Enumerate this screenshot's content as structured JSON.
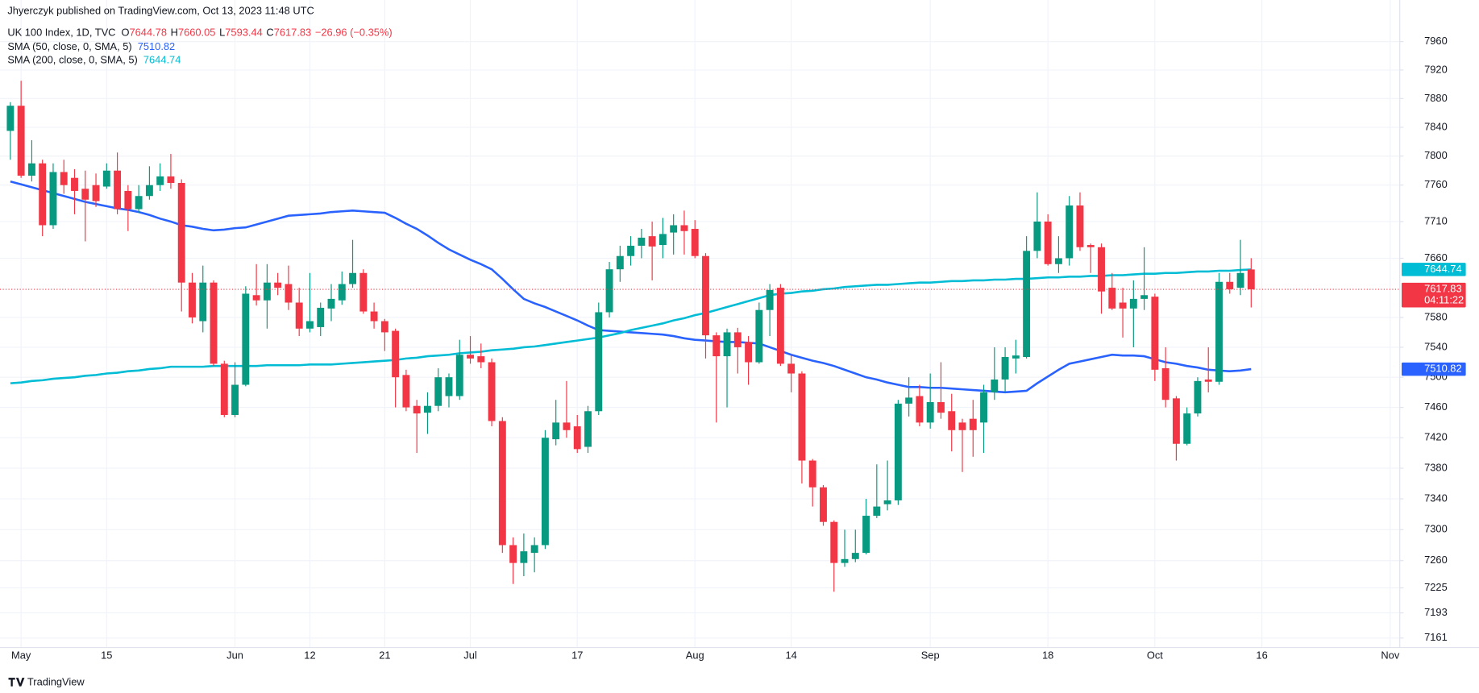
{
  "header": "Jhyerczyk published on TradingView.com, Oct 13, 2023 11:48 UTC",
  "footer": "TradingView",
  "chart_data": {
    "type": "candlestick",
    "title": "UK 100 Index, 1D, TVC",
    "legend": [
      {
        "label": "O",
        "value": 7644.78
      },
      {
        "label": "H",
        "value": 7660.05
      },
      {
        "label": "L",
        "value": 7593.44
      },
      {
        "label": "C",
        "value": 7617.83
      }
    ],
    "change": "−26.96 (−0.35%)",
    "countdown": "04:11:22",
    "up_color": "#089981",
    "down_color": "#f23645",
    "log_scale": true,
    "grid": true,
    "ylim": [
      7149,
      8019
    ],
    "yticks": [
      7161,
      7193,
      7225,
      7260,
      7300,
      7340,
      7380,
      7420,
      7460,
      7500,
      7540,
      7580,
      7660,
      7710,
      7760,
      7800,
      7840,
      7880,
      7920,
      7960
    ],
    "categories": [
      null,
      "May",
      null,
      null,
      null,
      null,
      null,
      null,
      null,
      "15",
      null,
      null,
      null,
      null,
      null,
      null,
      null,
      null,
      null,
      null,
      null,
      "Jun",
      null,
      null,
      null,
      null,
      null,
      null,
      "12",
      null,
      null,
      null,
      null,
      null,
      null,
      "21",
      null,
      null,
      null,
      null,
      null,
      null,
      null,
      "Jul",
      null,
      null,
      null,
      null,
      null,
      null,
      null,
      null,
      null,
      "17",
      null,
      null,
      null,
      null,
      null,
      null,
      null,
      null,
      null,
      null,
      "Aug",
      null,
      null,
      null,
      null,
      null,
      null,
      null,
      null,
      "14",
      null,
      null,
      null,
      null,
      null,
      null,
      null,
      null,
      null,
      null,
      null,
      null,
      "Sep",
      null,
      null,
      null,
      null,
      null,
      null,
      null,
      null,
      null,
      null,
      "18",
      null,
      null,
      null,
      null,
      null,
      null,
      null,
      null,
      null,
      "Oct",
      null,
      null,
      null,
      null,
      null,
      null,
      null,
      null,
      null,
      "16",
      null,
      null,
      null,
      null,
      null,
      null,
      null,
      null,
      null,
      null,
      null,
      "Nov"
    ],
    "open": [
      7835,
      7870,
      7773,
      7790,
      7705,
      7778,
      7770,
      7755,
      7760,
      7758,
      7780,
      7752,
      7727,
      7745,
      7760,
      7772,
      7763,
      7627,
      7575,
      7627,
      7518,
      7450,
      7490,
      7610,
      7603,
      7627,
      7625,
      7600,
      7565,
      7567,
      7592,
      7603,
      7625,
      7640,
      7588,
      7575,
      7562,
      7503,
      7462,
      7453,
      7462,
      7475,
      7475,
      7530,
      7528,
      7520,
      7442,
      7280,
      7257,
      7270,
      7280,
      7418,
      7440,
      7435,
      7408,
      7455,
      7587,
      7645,
      7663,
      7677,
      7690,
      7678,
      7695,
      7705,
      7700,
      7663,
      7556,
      7528,
      7560,
      7547,
      7520,
      7590,
      7620,
      7518,
      7505,
      7390,
      7355,
      7310,
      7257,
      7262,
      7270,
      7318,
      7333,
      7338,
      7465,
      7475,
      7440,
      7467,
      7455,
      7440,
      7445,
      7440,
      7480,
      7497,
      7525,
      7527,
      7670,
      7710,
      7652,
      7660,
      7732,
      7678,
      7675,
      7620,
      7600,
      7592,
      7605,
      7608,
      7512,
      7472,
      7412,
      7452,
      7497,
      7494,
      7628,
      7620,
      7644.78,
      null,
      null,
      null,
      null,
      null,
      null,
      null,
      null,
      null,
      null,
      null,
      null,
      null
    ],
    "high": [
      7875,
      7905,
      7822,
      7795,
      7790,
      7795,
      7782,
      7780,
      7776,
      7790,
      7805,
      7760,
      7760,
      7786,
      7790,
      7803,
      7768,
      7640,
      7650,
      7630,
      7522,
      7520,
      7622,
      7652,
      7652,
      7640,
      7650,
      7620,
      7640,
      7600,
      7625,
      7642,
      7685,
      7645,
      7600,
      7578,
      7565,
      7510,
      7470,
      7480,
      7512,
      7505,
      7550,
      7555,
      7545,
      7525,
      7447,
      7290,
      7295,
      7290,
      7430,
      7470,
      7495,
      7450,
      7462,
      7600,
      7655,
      7677,
      7690,
      7700,
      7710,
      7715,
      7720,
      7725,
      7712,
      7667,
      7560,
      7565,
      7566,
      7555,
      7600,
      7625,
      7625,
      7530,
      7508,
      7392,
      7358,
      7312,
      7300,
      7300,
      7340,
      7385,
      7390,
      7470,
      7500,
      7490,
      7505,
      7520,
      7478,
      7445,
      7470,
      7490,
      7540,
      7540,
      7550,
      7690,
      7750,
      7720,
      7690,
      7745,
      7750,
      7680,
      7680,
      7640,
      7620,
      7630,
      7675,
      7612,
      7540,
      7475,
      7460,
      7500,
      7540,
      7640,
      7640,
      7685,
      7660.05,
      null,
      null,
      null,
      null,
      null,
      null,
      null,
      null,
      null,
      null,
      null,
      null,
      null
    ],
    "low": [
      7795,
      7770,
      7765,
      7690,
      7700,
      7748,
      7720,
      7683,
      7730,
      7755,
      7720,
      7697,
      7722,
      7740,
      7752,
      7755,
      7588,
      7572,
      7560,
      7515,
      7447,
      7447,
      7488,
      7596,
      7565,
      7610,
      7590,
      7555,
      7560,
      7555,
      7575,
      7597,
      7620,
      7585,
      7565,
      7535,
      7460,
      7455,
      7400,
      7425,
      7455,
      7460,
      7470,
      7518,
      7512,
      7435,
      7270,
      7230,
      7240,
      7245,
      7275,
      7410,
      7420,
      7400,
      7400,
      7450,
      7580,
      7628,
      7650,
      7660,
      7630,
      7660,
      7665,
      7665,
      7660,
      7525,
      7440,
      7460,
      7505,
      7490,
      7518,
      7555,
      7515,
      7480,
      7360,
      7330,
      7305,
      7220,
      7252,
      7258,
      7268,
      7315,
      7325,
      7332,
      7448,
      7435,
      7432,
      7445,
      7402,
      7375,
      7395,
      7400,
      7470,
      7480,
      7505,
      7525,
      7660,
      7650,
      7640,
      7650,
      7670,
      7640,
      7585,
      7590,
      7553,
      7540,
      7590,
      7495,
      7460,
      7390,
      7410,
      7448,
      7480,
      7490,
      7612,
      7610,
      7593.44,
      null,
      null,
      null,
      null,
      null,
      null,
      null,
      null,
      null,
      null,
      null,
      null,
      null
    ],
    "close": [
      7870,
      7773,
      7790,
      7705,
      7778,
      7760,
      7752,
      7740,
      7738,
      7780,
      7727,
      7727,
      7745,
      7760,
      7772,
      7763,
      7627,
      7580,
      7627,
      7518,
      7450,
      7490,
      7612,
      7603,
      7627,
      7620,
      7600,
      7565,
      7575,
      7593,
      7605,
      7625,
      7640,
      7588,
      7575,
      7560,
      7500,
      7460,
      7452,
      7462,
      7500,
      7500,
      7530,
      7525,
      7520,
      7442,
      7280,
      7257,
      7272,
      7280,
      7420,
      7440,
      7430,
      7405,
      7455,
      7587,
      7645,
      7663,
      7677,
      7688,
      7676,
      7693,
      7705,
      7697,
      7663,
      7556,
      7528,
      7560,
      7540,
      7520,
      7590,
      7617,
      7518,
      7505,
      7390,
      7355,
      7310,
      7257,
      7262,
      7270,
      7318,
      7330,
      7338,
      7465,
      7473,
      7440,
      7467,
      7453,
      7430,
      7430,
      7430,
      7480,
      7497,
      7527,
      7529,
      7670,
      7710,
      7652,
      7660,
      7732,
      7675,
      7675,
      7615,
      7592,
      7592,
      7605,
      7610,
      7510,
      7470,
      7412,
      7452,
      7495,
      7494,
      7628,
      7618,
      7640,
      7617.83,
      null,
      null,
      null,
      null,
      null,
      null,
      null,
      null,
      null,
      null,
      null,
      null,
      null
    ],
    "series": [
      {
        "name": "SMA (50, close, 0, SMA, 5)",
        "color": "#2962ff",
        "values": [
          7765,
          7761,
          7757,
          7753,
          7749,
          7745,
          7741,
          7737,
          7734,
          7731,
          7728,
          7726,
          7723,
          7719,
          7714,
          7710,
          7705,
          7703,
          7700,
          7698,
          7699,
          7701,
          7702,
          7706,
          7710,
          7714,
          7718,
          7719,
          7720,
          7721,
          7723,
          7724,
          7725,
          7724,
          7723,
          7722,
          7715,
          7707,
          7700,
          7691,
          7681,
          7672,
          7665,
          7658,
          7652,
          7645,
          7632,
          7618,
          7605,
          7599,
          7594,
          7588,
          7582,
          7576,
          7569,
          7563,
          7562,
          7561,
          7560,
          7559,
          7558,
          7557,
          7555,
          7552,
          7550,
          7549,
          7548,
          7547,
          7547,
          7546,
          7545,
          7540,
          7535,
          7530,
          7526,
          7522,
          7519,
          7515,
          7510,
          7505,
          7500,
          7497,
          7493,
          7490,
          7487,
          7487,
          7486,
          7486,
          7485,
          7484,
          7483,
          7482,
          7481,
          7480,
          7481,
          7482,
          7492,
          7501,
          7510,
          7518,
          7521,
          7524,
          7527,
          7530,
          7529,
          7529,
          7528,
          7524,
          7520,
          7518,
          7515,
          7513,
          7510,
          7509,
          7508,
          7509,
          7510.82,
          null,
          null,
          null,
          null,
          null,
          null,
          null,
          null,
          null,
          null,
          null,
          null,
          null
        ]
      },
      {
        "name": "SMA (200, close, 0, SMA, 5)",
        "color": "#00bcd4",
        "values": [
          7492,
          7493,
          7495,
          7496,
          7498,
          7499,
          7500,
          7502,
          7503,
          7505,
          7506,
          7508,
          7509,
          7511,
          7512,
          7514,
          7514,
          7514,
          7514,
          7515,
          7515,
          7515,
          7515,
          7515,
          7516,
          7516,
          7516,
          7516,
          7517,
          7517,
          7517,
          7518,
          7519,
          7520,
          7521,
          7522,
          7523,
          7525,
          7526,
          7528,
          7529,
          7530,
          7532,
          7533,
          7534,
          7536,
          7537,
          7538,
          7540,
          7541,
          7543,
          7545,
          7547,
          7549,
          7551,
          7553,
          7556,
          7559,
          7563,
          7566,
          7569,
          7572,
          7576,
          7579,
          7583,
          7586,
          7590,
          7594,
          7598,
          7602,
          7606,
          7610,
          7612,
          7613,
          7615,
          7616,
          7618,
          7619,
          7621,
          7622,
          7623,
          7624,
          7624,
          7625,
          7626,
          7627,
          7627,
          7628,
          7629,
          7629,
          7630,
          7630,
          7631,
          7631,
          7632,
          7632,
          7633,
          7634,
          7634,
          7635,
          7635,
          7636,
          7636,
          7637,
          7637,
          7638,
          7639,
          7639,
          7640,
          7640,
          7641,
          7642,
          7642,
          7643,
          7643,
          7644,
          7644.74,
          null,
          null,
          null,
          null,
          null,
          null,
          null,
          null,
          null,
          null,
          null,
          null,
          null
        ]
      }
    ]
  }
}
